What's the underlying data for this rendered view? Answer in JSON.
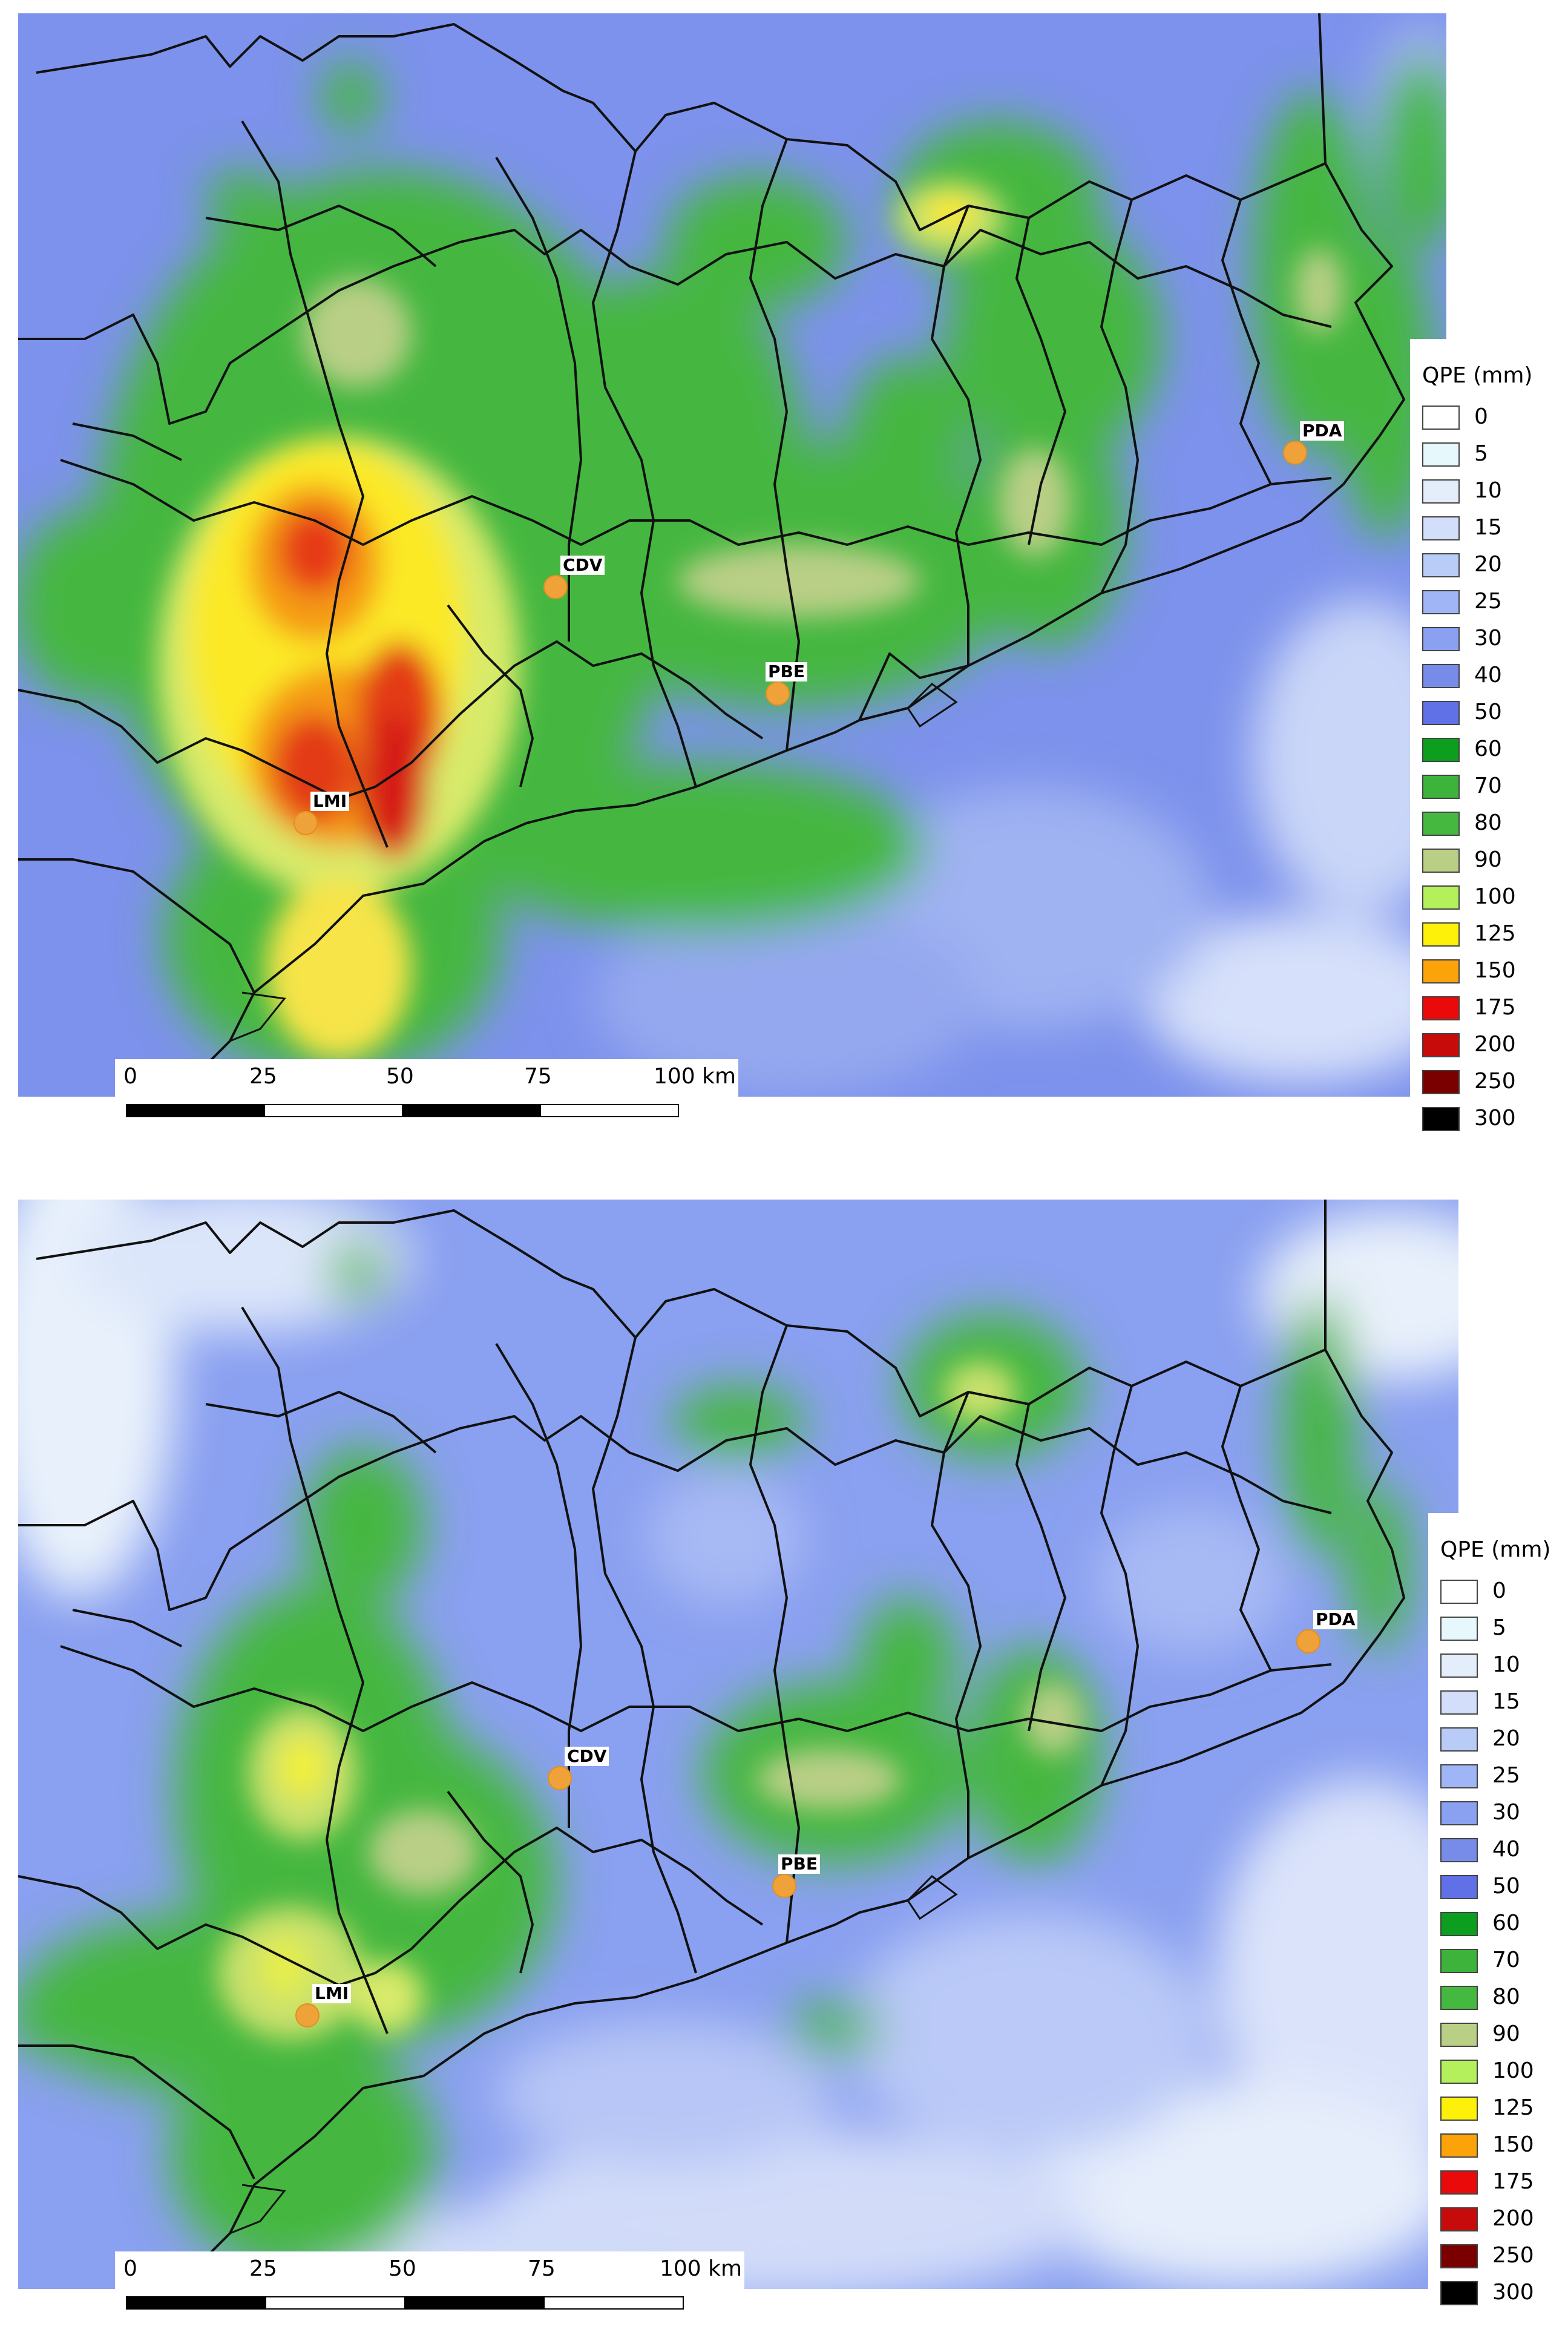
{
  "panels": [
    {
      "id": "top",
      "stations": [
        {
          "code": "CDV"
        },
        {
          "code": "PDA"
        },
        {
          "code": "PBE"
        },
        {
          "code": "LMI"
        }
      ],
      "scalebar": {
        "ticks": [
          "0",
          "25",
          "50",
          "75",
          "100 km"
        ]
      },
      "legend": {
        "title": "QPE (mm)"
      }
    },
    {
      "id": "bottom",
      "stations": [
        {
          "code": "CDV"
        },
        {
          "code": "PDA"
        },
        {
          "code": "PBE"
        },
        {
          "code": "LMI"
        }
      ],
      "scalebar": {
        "ticks": [
          "0",
          "25",
          "50",
          "75",
          "100 km"
        ]
      },
      "legend": {
        "title": "QPE (mm)"
      }
    }
  ],
  "legend_classes": [
    {
      "value": "0",
      "color": "#ffffff"
    },
    {
      "value": "5",
      "color": "#e6f8fb"
    },
    {
      "value": "10",
      "color": "#e4eefb"
    },
    {
      "value": "15",
      "color": "#d2defa"
    },
    {
      "value": "20",
      "color": "#b9cbf7"
    },
    {
      "value": "25",
      "color": "#9fb5f5"
    },
    {
      "value": "30",
      "color": "#8aa0f0"
    },
    {
      "value": "40",
      "color": "#778be9"
    },
    {
      "value": "50",
      "color": "#6070e6"
    },
    {
      "value": "60",
      "color": "#0b9e1f"
    },
    {
      "value": "70",
      "color": "#3db33c"
    },
    {
      "value": "80",
      "color": "#45b840"
    },
    {
      "value": "90",
      "color": "#b9cf86"
    },
    {
      "value": "100",
      "color": "#b3f05c"
    },
    {
      "value": "125",
      "color": "#fdf10a"
    },
    {
      "value": "150",
      "color": "#fda30a"
    },
    {
      "value": "175",
      "color": "#ea0a0a"
    },
    {
      "value": "200",
      "color": "#c70a0a"
    },
    {
      "value": "250",
      "color": "#7a0000"
    },
    {
      "value": "300",
      "color": "#000000"
    }
  ]
}
